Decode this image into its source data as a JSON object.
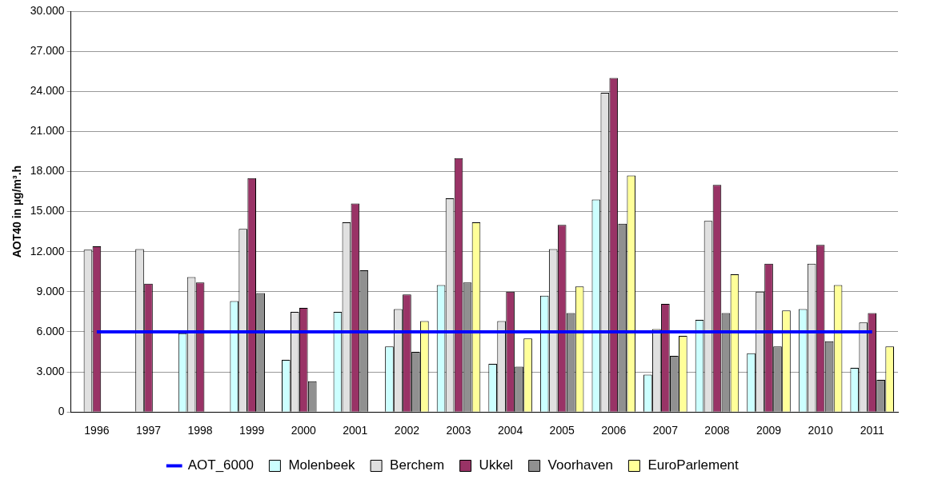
{
  "chart_data": {
    "type": "bar",
    "ylabel": "AOT40 in µg/m³.h",
    "categories": [
      "1996",
      "1997",
      "1998",
      "1999",
      "2000",
      "2001",
      "2002",
      "2003",
      "2004",
      "2005",
      "2006",
      "2007",
      "2008",
      "2009",
      "2010",
      "2011"
    ],
    "series": [
      {
        "name": "Molenbeek",
        "color": "#ccffff",
        "values": [
          null,
          null,
          5900,
          8300,
          3900,
          7500,
          4900,
          9500,
          3600,
          8700,
          15900,
          2800,
          6900,
          4400,
          7700,
          3300
        ]
      },
      {
        "name": "Berchem",
        "color": "#e0e0e0",
        "values": [
          12150,
          12200,
          10100,
          13700,
          7500,
          14200,
          7700,
          16000,
          6800,
          12200,
          23900,
          6200,
          14300,
          9000,
          11100,
          6700
        ]
      },
      {
        "name": "Ukkel",
        "color": "#993366",
        "values": [
          12400,
          9600,
          9700,
          17500,
          7800,
          15600,
          8800,
          19000,
          9000,
          14000,
          25000,
          8100,
          17000,
          11100,
          12500,
          7400
        ]
      },
      {
        "name": "Voorhaven",
        "color": "#909090",
        "values": [
          null,
          null,
          null,
          8900,
          2300,
          10600,
          4500,
          9700,
          3400,
          7400,
          14100,
          4200,
          7400,
          4900,
          5300,
          2400
        ]
      },
      {
        "name": "EuroParlement",
        "color": "#ffff99",
        "values": [
          null,
          null,
          null,
          null,
          null,
          null,
          6800,
          14200,
          5500,
          9400,
          17700,
          5700,
          10300,
          7600,
          9500,
          4900
        ]
      },
      {
        "name": "AOT_6000",
        "type": "line",
        "color": "#0000ff",
        "values": [
          6000,
          6000,
          6000,
          6000,
          6000,
          6000,
          6000,
          6000,
          6000,
          6000,
          6000,
          6000,
          6000,
          6000,
          6000,
          6000
        ]
      }
    ],
    "ylim": [
      0,
      30000
    ],
    "yticks": [
      0,
      {
        "value": 3000,
        "label": "3.000"
      },
      {
        "value": 6000,
        "label": "6.000"
      },
      {
        "value": 9000,
        "label": "9.000"
      },
      {
        "value": 12000,
        "label": "12.000"
      },
      {
        "value": 15000,
        "label": "15.000"
      },
      {
        "value": 18000,
        "label": "18.000"
      },
      {
        "value": 21000,
        "label": "21.000"
      },
      {
        "value": 24000,
        "label": "24.000"
      },
      {
        "value": 27000,
        "label": "27.000"
      },
      {
        "value": 30000,
        "label": "30.000"
      }
    ],
    "grid": "y",
    "legend": "bottom",
    "marker": "none",
    "line_style": "solid"
  }
}
